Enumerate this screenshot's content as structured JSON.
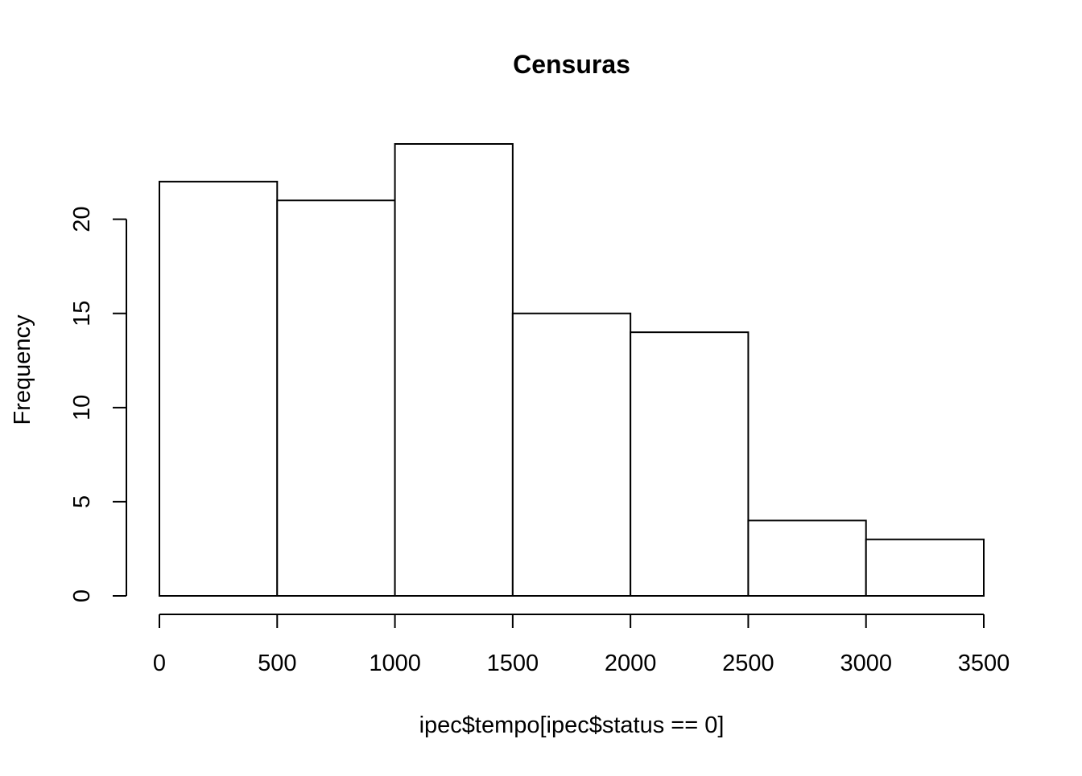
{
  "chart_data": {
    "type": "bar",
    "title": "Censuras",
    "xlabel": "ipec$tempo[ipec$status == 0]",
    "ylabel": "Frequency",
    "bins": [
      {
        "start": 0,
        "end": 500,
        "count": 22
      },
      {
        "start": 500,
        "end": 1000,
        "count": 21
      },
      {
        "start": 1000,
        "end": 1500,
        "count": 24
      },
      {
        "start": 1500,
        "end": 2000,
        "count": 15
      },
      {
        "start": 2000,
        "end": 2500,
        "count": 14
      },
      {
        "start": 2500,
        "end": 3000,
        "count": 4
      },
      {
        "start": 3000,
        "end": 3500,
        "count": 3
      }
    ],
    "x_ticks": [
      0,
      500,
      1000,
      1500,
      2000,
      2500,
      3000,
      3500
    ],
    "y_ticks": [
      0,
      5,
      10,
      15,
      20
    ],
    "xlim": [
      0,
      3500
    ],
    "ylim": [
      0,
      24
    ],
    "grid": false,
    "legend": "none",
    "colors": {
      "bar_fill": "#ffffff",
      "bar_stroke": "#000000",
      "axis": "#000000",
      "background": "#ffffff"
    }
  }
}
